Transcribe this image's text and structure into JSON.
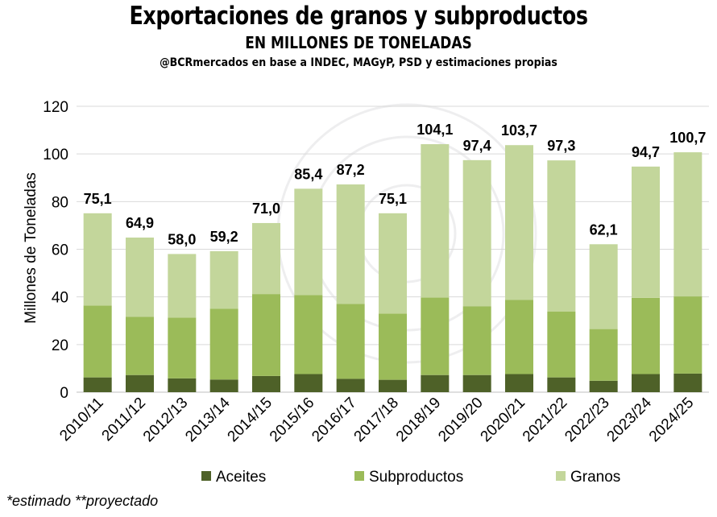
{
  "chart_data": {
    "type": "bar",
    "stacked": true,
    "title": "Exportaciones de granos y subproductos",
    "subtitle": "EN MILLONES DE TONELADAS",
    "source": "@BCRmercados en base a INDEC, MAGyP, PSD y estimaciones propias",
    "ylabel": "Millones de Toneladas",
    "xlabel": "",
    "ylim": [
      0,
      120
    ],
    "yticks": [
      "0",
      "20",
      "40",
      "60",
      "80",
      "100",
      "120"
    ],
    "categories": [
      "2010/11",
      "2011/12",
      "2012/13",
      "2013/14",
      "2014/15",
      "2015/16",
      "2016/17",
      "2017/18",
      "2018/19",
      "2019/20",
      "2020/21",
      "2021/22",
      "2022/23",
      "2023/24",
      "2024/25"
    ],
    "series": [
      {
        "name": "Aceites",
        "color": "#4e6128",
        "values": [
          6.2,
          7.2,
          5.8,
          5.3,
          6.8,
          7.6,
          5.6,
          5.2,
          7.2,
          7.2,
          7.6,
          6.2,
          4.8,
          7.6,
          7.8
        ]
      },
      {
        "name": "Subproductos",
        "color": "#9bbb59",
        "values": [
          30.2,
          24.4,
          25.5,
          29.7,
          34.4,
          33.2,
          31.5,
          27.8,
          32.5,
          28.8,
          31.1,
          27.6,
          21.7,
          32.0,
          32.4
        ]
      },
      {
        "name": "Granos",
        "color": "#c3d69b",
        "values": [
          38.7,
          33.3,
          26.7,
          24.2,
          29.8,
          44.6,
          50.1,
          42.1,
          64.4,
          61.4,
          65.0,
          63.5,
          35.6,
          55.1,
          60.5
        ]
      }
    ],
    "totals": [
      "75,1",
      "64,9",
      "58,0",
      "59,2",
      "71,0",
      "85,4",
      "87,2",
      "75,1",
      "104,1",
      "97,4",
      "103,7",
      "97,3",
      "62,1",
      "94,7",
      "100,7"
    ],
    "grid": true,
    "legend_position": "bottom"
  },
  "footnote": "*estimado  **proyectado"
}
